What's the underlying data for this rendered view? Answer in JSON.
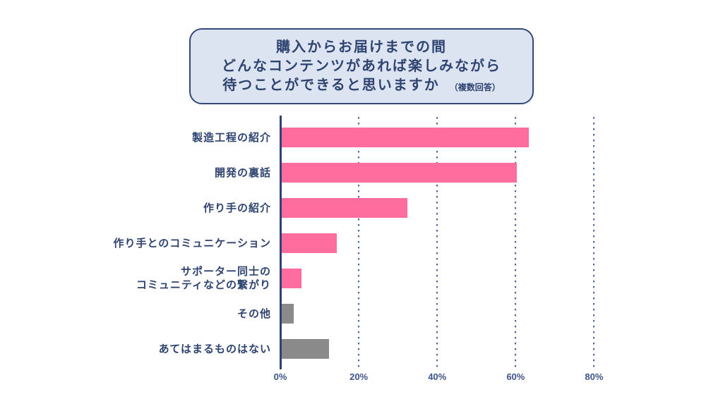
{
  "title": {
    "line1": "購入からお届けまでの間",
    "line2": "どんなコンテンツがあれば楽しみながら",
    "line3": "待つことができると思いますか",
    "note": "（複数回答）"
  },
  "colors": {
    "accent_pink": "#ff6d9e",
    "neutral_gray": "#8a8a8a",
    "text_navy": "#2e4370",
    "box_background": "#dce4f1",
    "box_border": "#33497a",
    "grid_dot": "#4d639b"
  },
  "chart_data": {
    "type": "bar",
    "orientation": "horizontal",
    "title": "購入からお届けまでの間 どんなコンテンツがあれば楽しみながら 待つことができると思いますか（複数回答）",
    "categories": [
      "製造工程の紹介",
      "開発の裏話",
      "作り手の紹介",
      "作り手とのコミュニケーション",
      "サポーター同士の\nコミュニティなどの繋がり",
      "その他",
      "あてはまるものはない"
    ],
    "values": [
      63,
      60,
      32,
      14,
      5,
      3,
      12
    ],
    "unit": "%",
    "bar_colors": [
      "pink",
      "pink",
      "pink",
      "pink",
      "pink",
      "gray",
      "gray"
    ],
    "xlim": [
      0,
      90
    ],
    "ticks": [
      0,
      20,
      40,
      60,
      80
    ],
    "tick_labels": [
      "0%",
      "20%",
      "40%",
      "60%",
      "80%"
    ],
    "grid": "dotted-vertical",
    "legend": "none"
  }
}
